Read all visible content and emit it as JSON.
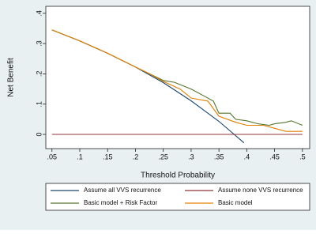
{
  "chart_data": {
    "type": "line",
    "x_label": "Threshold Probability",
    "y_label": "Net Benefit",
    "xlim": [
      0.039,
      0.513
    ],
    "ylim": [
      -0.047,
      0.423
    ],
    "xticks": [
      {
        "value": 0.05,
        "label": ".05"
      },
      {
        "value": 0.1,
        "label": ".1"
      },
      {
        "value": 0.15,
        "label": ".15"
      },
      {
        "value": 0.2,
        "label": ".2"
      },
      {
        "value": 0.25,
        "label": ".25"
      },
      {
        "value": 0.3,
        "label": ".3"
      },
      {
        "value": 0.35,
        "label": ".35"
      },
      {
        "value": 0.4,
        "label": ".4"
      },
      {
        "value": 0.45,
        "label": ".45"
      },
      {
        "value": 0.5,
        "label": ".5"
      }
    ],
    "yticks": [
      0,
      {
        "value": 0.1,
        "label": ".1"
      },
      {
        "value": 0.2,
        "label": ".2"
      },
      {
        "value": 0.3,
        "label": ".3"
      },
      {
        "value": 0.4,
        "label": ".4"
      }
    ],
    "series": [
      {
        "name": "Assume all VVS recurrence",
        "color": "#1a476f",
        "x": [
          0.05,
          0.1,
          0.15,
          0.2,
          0.25,
          0.3,
          0.35,
          0.395
        ],
        "values": [
          0.345,
          0.309,
          0.268,
          0.2225,
          0.171,
          0.111,
          0.043,
          -0.028
        ]
      },
      {
        "name": "Assume none VVS recurrence",
        "color": "#90353b",
        "x": [
          0.05,
          0.5
        ],
        "values": [
          0,
          0
        ]
      },
      {
        "name": "Basic model + Risk Factor",
        "color": "#55752f",
        "x": [
          0.05,
          0.1,
          0.15,
          0.2,
          0.22,
          0.25,
          0.27,
          0.3,
          0.32,
          0.34,
          0.35,
          0.37,
          0.38,
          0.4,
          0.42,
          0.44,
          0.45,
          0.47,
          0.48,
          0.5
        ],
        "values": [
          0.345,
          0.309,
          0.268,
          0.2225,
          0.205,
          0.178,
          0.172,
          0.15,
          0.13,
          0.11,
          0.07,
          0.07,
          0.05,
          0.045,
          0.035,
          0.03,
          0.035,
          0.04,
          0.045,
          0.03
        ]
      },
      {
        "name": "Basic model",
        "color": "#e37e00",
        "x": [
          0.05,
          0.1,
          0.15,
          0.2,
          0.22,
          0.25,
          0.28,
          0.3,
          0.33,
          0.35,
          0.38,
          0.4,
          0.43,
          0.45,
          0.47,
          0.5
        ],
        "values": [
          0.345,
          0.309,
          0.268,
          0.2225,
          0.205,
          0.175,
          0.15,
          0.12,
          0.11,
          0.06,
          0.04,
          0.03,
          0.03,
          0.02,
          0.01,
          0.01
        ]
      }
    ]
  }
}
